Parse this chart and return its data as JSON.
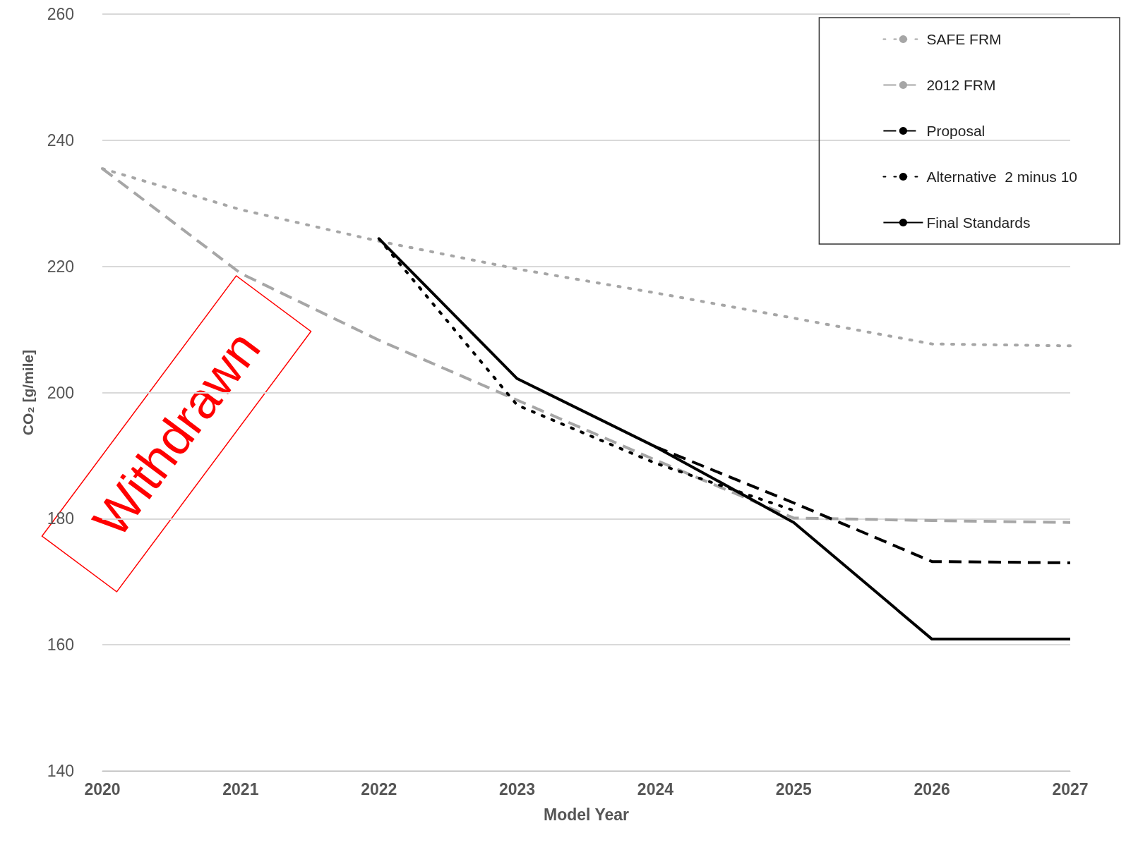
{
  "chart_data": {
    "type": "line",
    "xlabel": "Model Year",
    "ylabel": "CO₂ [g/mile]",
    "x": [
      2020,
      2021,
      2022,
      2023,
      2024,
      2025,
      2026,
      2027
    ],
    "xlim": [
      2020,
      2027
    ],
    "xticks": [
      2020,
      2021,
      2022,
      2023,
      2024,
      2025,
      2026,
      2027
    ],
    "ylim": [
      140,
      260
    ],
    "yticks": [
      140,
      160,
      180,
      200,
      220,
      240,
      260
    ],
    "grid": "y",
    "legend": "top right",
    "marker": "none",
    "annotations": [
      "Withdrawn"
    ],
    "series": [
      {
        "name": "SAFE FRM",
        "color": "#a6a6a6",
        "line_style": "dotted",
        "values": [
          235.5,
          229,
          224,
          219.6,
          215.8,
          211.8,
          207.7,
          207.4
        ]
      },
      {
        "name": "2012 FRM",
        "color": "#a6a6a6",
        "line_style": "dashed",
        "values": [
          235.5,
          218.9,
          208.3,
          198.8,
          189.3,
          180.1,
          179.7,
          179.4
        ]
      },
      {
        "name": "Proposal",
        "color": "#000000",
        "line_style": "dashed",
        "values": [
          null,
          null,
          null,
          null,
          191.4,
          182.5,
          173.2,
          173
        ]
      },
      {
        "name": "Alternative  2 minus 10",
        "color": "#000000",
        "line_style": "dotted",
        "values": [
          null,
          null,
          224.4,
          198,
          188.8,
          181.3,
          null,
          null
        ]
      },
      {
        "name": "Final Standards",
        "color": "#000000",
        "line_style": "solid",
        "values": [
          null,
          null,
          224.4,
          202.2,
          191.4,
          179.4,
          160.9,
          160.9
        ]
      }
    ]
  }
}
